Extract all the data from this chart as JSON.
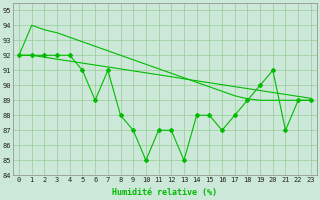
{
  "x": [
    0,
    1,
    2,
    3,
    4,
    5,
    6,
    7,
    8,
    9,
    10,
    11,
    12,
    13,
    14,
    15,
    16,
    17,
    18,
    19,
    20,
    21,
    22,
    23
  ],
  "y_main": [
    92,
    92,
    92,
    92,
    92,
    91,
    89,
    91,
    88,
    87,
    85,
    87,
    87,
    85,
    88,
    88,
    87,
    88,
    89,
    90,
    91,
    87,
    89,
    89
  ],
  "y_env_upper": [
    92,
    94,
    93.7,
    93.5,
    93.2,
    92.9,
    92.6,
    92.3,
    92.0,
    91.7,
    91.4,
    91.1,
    90.8,
    90.5,
    90.2,
    89.9,
    89.6,
    89.3,
    89.1,
    89.0,
    89.0,
    89.0,
    89.0,
    89.0
  ],
  "y_env_lower": [
    92,
    92,
    91.87,
    91.74,
    91.61,
    91.48,
    91.35,
    91.22,
    91.09,
    90.96,
    90.83,
    90.7,
    90.57,
    90.43,
    90.3,
    90.17,
    90.04,
    89.91,
    89.78,
    89.65,
    89.52,
    89.39,
    89.26,
    89.13
  ],
  "line_color": "#00bb00",
  "bg_color": "#cce8d8",
  "grid_color": "#99cc99",
  "xlabel": "Humidité relative (%)",
  "ylim_min": 84,
  "ylim_max": 95.5,
  "yticks": [
    84,
    85,
    86,
    87,
    88,
    89,
    90,
    91,
    92,
    93,
    94,
    95
  ],
  "xticks": [
    0,
    1,
    2,
    3,
    4,
    5,
    6,
    7,
    8,
    9,
    10,
    11,
    12,
    13,
    14,
    15,
    16,
    17,
    18,
    19,
    20,
    21,
    22,
    23
  ],
  "xlabel_fontsize": 6.0,
  "tick_fontsize": 5.0,
  "linewidth": 0.8,
  "marker": "D",
  "markersize": 2.0
}
